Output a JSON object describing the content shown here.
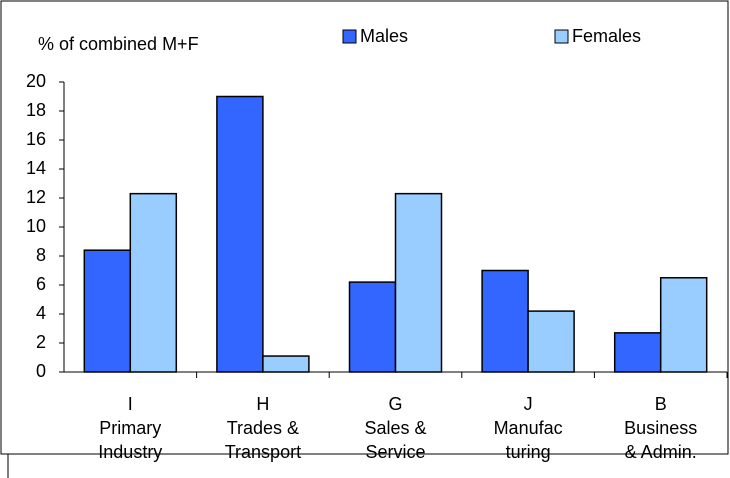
{
  "chart_data": {
    "type": "bar",
    "title": "% of combined M+F",
    "categories": [
      [
        "I",
        "Primary",
        "Industry"
      ],
      [
        "H",
        "Trades &",
        "Transport"
      ],
      [
        "G",
        "Sales &",
        "Service"
      ],
      [
        "J",
        "Manufac",
        "turing"
      ],
      [
        "B",
        "Business",
        "& Admin."
      ]
    ],
    "series": [
      {
        "name": "Males",
        "color": "#3366ff",
        "values": [
          8.4,
          19,
          6.2,
          7,
          2.7
        ]
      },
      {
        "name": "Females",
        "color": "#99ccff",
        "values": [
          12.3,
          1.1,
          12.3,
          4.2,
          6.5
        ]
      }
    ],
    "ylim": [
      0,
      20
    ],
    "yticks": [
      0,
      2,
      4,
      6,
      8,
      10,
      12,
      14,
      16,
      18,
      20
    ],
    "grid": false,
    "legend": "top"
  }
}
